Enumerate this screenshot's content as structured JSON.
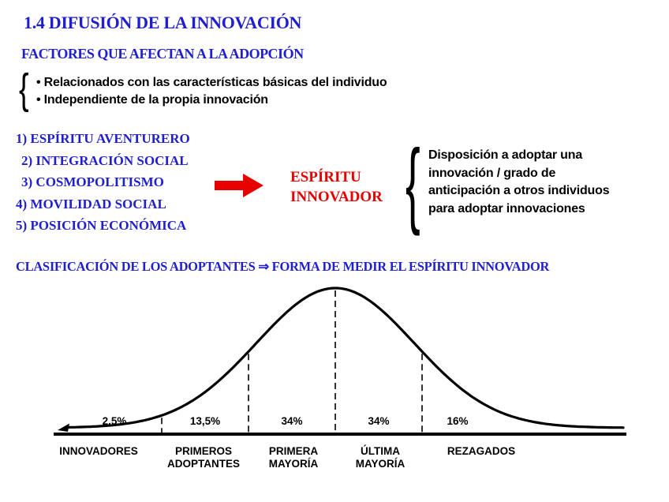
{
  "slide": {
    "title": "1.4 DIFUSIÓN DE LA INNOVACIÓN",
    "factors": {
      "heading": "FACTORES QUE AFECTAN A LA ADOPCIÓN",
      "bullets": [
        "• Relacionados con las características básicas del individuo",
        "• Independiente de la propia innovación"
      ],
      "items": [
        "1) ESPÍRITU AVENTURERO",
        "2) INTEGRACIÓN SOCIAL",
        "3) COSMOPOLITISMO",
        "4) MOVILIDAD SOCIAL",
        "5) POSICIÓN ECONÓMICA"
      ]
    },
    "spirit": {
      "line1": "ESPÍRITU",
      "line2": "INNOVADOR",
      "definition": [
        "Disposición a adoptar una",
        "innovación / grado de",
        "anticipación a otros individuos",
        "para adoptar innovaciones"
      ]
    },
    "classification_heading": "CLASIFICACIÓN DE LOS ADOPTANTES ⇒ FORMA DE MEDIR EL ESPÍRITU INNOVADOR"
  },
  "glyphs": {
    "brace": "{"
  },
  "chart_data": {
    "type": "area",
    "title": "Clasificación de los adoptantes (curva normal del espíritu innovador)",
    "curve": "normal-distribution",
    "categories": [
      "INNOVADORES",
      "PRIMEROS ADOPTANTES",
      "PRIMERA MAYORÍA",
      "ÚLTIMA MAYORÍA",
      "REZAGADOS"
    ],
    "values": [
      2.5,
      13.5,
      34,
      34,
      16
    ],
    "percent_labels": [
      "2,5%",
      "13,5%",
      "34%",
      "34%",
      "16%"
    ],
    "segment_boundaries_sd": [
      -2,
      -1,
      0,
      1
    ],
    "legend": "none",
    "grid": false
  },
  "colors": {
    "heading_blue": "#1f1fcd",
    "accent_red": "#e60000",
    "text_black": "#000000",
    "background": "#ffffff"
  }
}
